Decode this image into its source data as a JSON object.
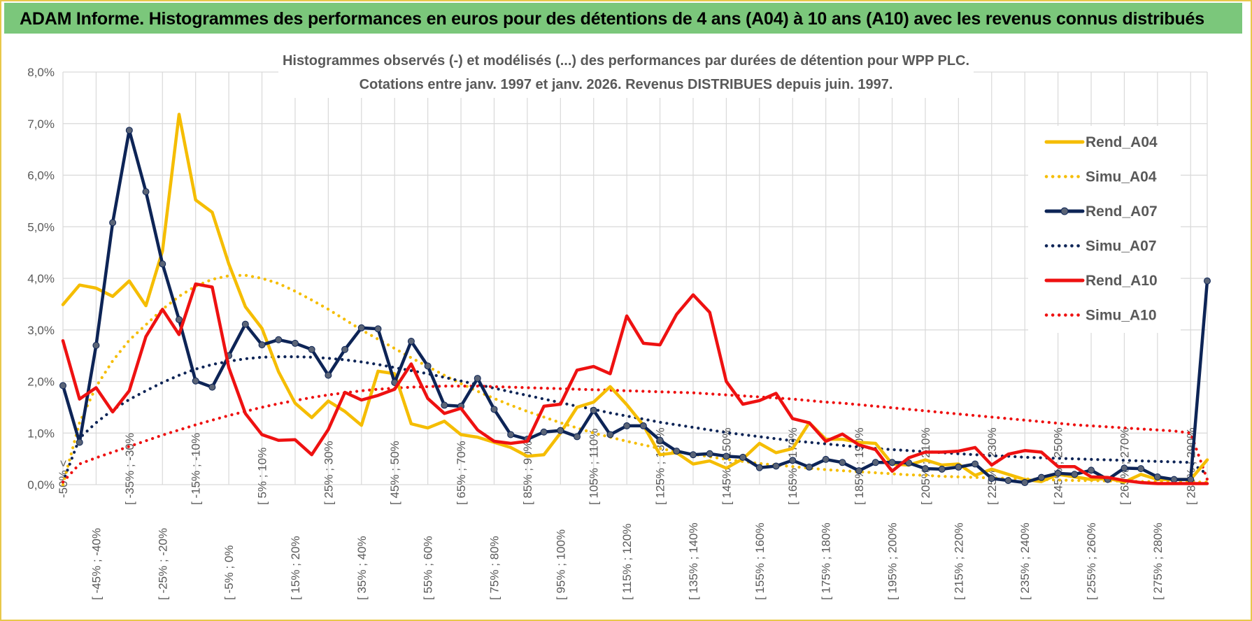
{
  "header": {
    "title": "ADAM Informe. Histogrammes des performances en euros pour des détentions de 4 ans (A04) à 10 ans (A10) avec les revenus connus distribués"
  },
  "colors": {
    "banner": "#7bc77b",
    "frame": "#e8c84a",
    "A04": "#f5bd00",
    "A07": "#0d2456",
    "A10": "#ee1111",
    "grid": "#d9d9d9"
  },
  "chart_data": {
    "type": "line",
    "title": "Histogrammes observés (-) et modélisés (...) des performances par durées de détention pour WPP PLC.",
    "subtitle": "Cotations entre janv. 1997 et janv. 2026. Revenus DISTRIBUES depuis juin. 1997.",
    "ylim": [
      0,
      8
    ],
    "yticks": [
      "0,0%",
      "1,0%",
      "2,0%",
      "3,0%",
      "4,0%",
      "5,0%",
      "6,0%",
      "7,0%",
      "8,0%"
    ],
    "xticklabels": [
      "-50% <",
      "[ -45% ; -40%",
      "[ -35% ; -30%",
      "[ -25% ; -20%",
      "[ -15% ; -10%",
      "[ -5% ; 0%",
      "[ 5% ; 10%",
      "[ 15% ; 20%",
      "[ 25% ; 30%",
      "[ 35% ; 40%",
      "[ 45% ; 50%",
      "[ 55% ; 60%",
      "[ 65% ; 70%",
      "[ 75% ; 80%",
      "[ 85% ; 90%",
      "[ 95% ; 100%",
      "[ 105% ; 110%",
      "[ 115% ; 120%",
      "[ 125% ; 130%",
      "[ 135% ; 140%",
      "[ 145% ; 150%",
      "[ 155% ; 160%",
      "[ 165% ; 170%",
      "[ 175% ; 180%",
      "[ 185% ; 190%",
      "[ 195% ; 200%",
      "[ 205% ; 210%",
      "[ 215% ; 220%",
      "[ 225% ; 230%",
      "[ 235% ; 240%",
      "[ 245% ; 250%",
      "[ 255% ; 260%",
      "[ 265% ; 270%",
      "[ 275% ; 280%",
      "[ 285% ; 290%"
    ],
    "legend_position": "right",
    "series": [
      {
        "name": "Rend_A04",
        "kind": "observed",
        "color": "#f5bd00",
        "markers": false,
        "values": [
          3.49,
          3.87,
          3.81,
          3.65,
          3.95,
          3.47,
          4.53,
          7.18,
          5.52,
          5.28,
          4.28,
          3.45,
          3.03,
          2.19,
          1.58,
          1.3,
          1.62,
          1.42,
          1.15,
          2.2,
          2.15,
          1.18,
          1.1,
          1.23,
          0.97,
          0.92,
          0.82,
          0.72,
          0.55,
          0.58,
          1.0,
          1.5,
          1.6,
          1.9,
          1.55,
          1.15,
          0.58,
          0.62,
          0.4,
          0.46,
          0.32,
          0.5,
          0.8,
          0.62,
          0.7,
          1.2,
          0.88,
          0.88,
          0.82,
          0.8,
          0.4,
          0.38,
          0.48,
          0.38,
          0.4,
          0.18,
          0.3,
          0.2,
          0.1,
          0.06,
          0.2,
          0.15,
          0.1,
          0.12,
          0.05,
          0.2,
          0.1,
          0.1,
          0.1,
          0.48
        ]
      },
      {
        "name": "Simu_A04",
        "kind": "model",
        "color": "#f5bd00",
        "values": [
          0.0,
          1.2,
          1.9,
          2.4,
          2.8,
          3.1,
          3.4,
          3.65,
          3.85,
          3.98,
          4.05,
          4.06,
          4.0,
          3.9,
          3.75,
          3.58,
          3.4,
          3.2,
          3.0,
          2.82,
          2.64,
          2.46,
          2.29,
          2.12,
          1.96,
          1.81,
          1.67,
          1.54,
          1.42,
          1.31,
          1.2,
          1.1,
          1.0,
          0.92,
          0.84,
          0.77,
          0.7,
          0.64,
          0.59,
          0.54,
          0.49,
          0.45,
          0.41,
          0.38,
          0.35,
          0.32,
          0.29,
          0.27,
          0.25,
          0.23,
          0.21,
          0.19,
          0.18,
          0.16,
          0.15,
          0.14,
          0.13,
          0.12,
          0.11,
          0.1,
          0.09,
          0.08,
          0.08,
          0.07,
          0.07,
          0.06,
          0.06,
          0.05,
          0.05,
          0.05
        ]
      },
      {
        "name": "Rend_A07",
        "kind": "observed",
        "color": "#0d2456",
        "markers": true,
        "values": [
          1.92,
          0.82,
          2.7,
          5.08,
          6.87,
          5.68,
          4.28,
          3.2,
          2.01,
          1.89,
          2.5,
          3.11,
          2.71,
          2.81,
          2.74,
          2.62,
          2.12,
          2.62,
          3.04,
          3.02,
          1.98,
          2.78,
          2.3,
          1.54,
          1.52,
          2.06,
          1.46,
          0.97,
          0.88,
          1.02,
          1.05,
          0.93,
          1.44,
          0.97,
          1.14,
          1.14,
          0.86,
          0.65,
          0.58,
          0.6,
          0.55,
          0.53,
          0.33,
          0.36,
          0.47,
          0.34,
          0.49,
          0.43,
          0.27,
          0.43,
          0.43,
          0.42,
          0.31,
          0.3,
          0.34,
          0.4,
          0.12,
          0.08,
          0.04,
          0.14,
          0.22,
          0.2,
          0.28,
          0.1,
          0.32,
          0.31,
          0.15,
          0.1,
          0.1,
          3.95
        ]
      },
      {
        "name": "Simu_A07",
        "kind": "model",
        "color": "#0d2456",
        "values": [
          0.05,
          0.9,
          1.2,
          1.45,
          1.65,
          1.82,
          1.98,
          2.12,
          2.24,
          2.33,
          2.39,
          2.44,
          2.47,
          2.48,
          2.48,
          2.47,
          2.45,
          2.42,
          2.38,
          2.33,
          2.27,
          2.21,
          2.15,
          2.08,
          2.01,
          1.94,
          1.87,
          1.8,
          1.73,
          1.66,
          1.59,
          1.52,
          1.46,
          1.39,
          1.33,
          1.27,
          1.21,
          1.16,
          1.11,
          1.06,
          1.01,
          0.97,
          0.93,
          0.89,
          0.85,
          0.82,
          0.79,
          0.76,
          0.73,
          0.7,
          0.68,
          0.66,
          0.64,
          0.62,
          0.6,
          0.58,
          0.56,
          0.55,
          0.53,
          0.52,
          0.51,
          0.5,
          0.49,
          0.48,
          0.47,
          0.46,
          0.45,
          0.44,
          0.43,
          0.2
        ]
      },
      {
        "name": "Rend_A10",
        "kind": "observed",
        "color": "#ee1111",
        "markers": false,
        "values": [
          2.79,
          1.66,
          1.88,
          1.41,
          1.82,
          2.87,
          3.4,
          2.91,
          3.89,
          3.83,
          2.27,
          1.38,
          0.97,
          0.86,
          0.87,
          0.58,
          1.07,
          1.79,
          1.64,
          1.73,
          1.85,
          2.34,
          1.67,
          1.38,
          1.48,
          1.06,
          0.84,
          0.8,
          0.84,
          1.52,
          1.56,
          2.22,
          2.29,
          2.15,
          3.27,
          2.74,
          2.71,
          3.3,
          3.68,
          3.34,
          2.0,
          1.56,
          1.63,
          1.77,
          1.28,
          1.2,
          0.84,
          0.98,
          0.77,
          0.68,
          0.26,
          0.52,
          0.63,
          0.63,
          0.65,
          0.72,
          0.38,
          0.59,
          0.66,
          0.63,
          0.35,
          0.35,
          0.15,
          0.14,
          0.08,
          0.04,
          0.02,
          0.02,
          0.02,
          0.02
        ]
      },
      {
        "name": "Simu_A10",
        "kind": "model",
        "color": "#ee1111",
        "values": [
          0.05,
          0.4,
          0.52,
          0.63,
          0.74,
          0.85,
          0.96,
          1.06,
          1.16,
          1.25,
          1.34,
          1.42,
          1.5,
          1.57,
          1.63,
          1.69,
          1.74,
          1.78,
          1.82,
          1.85,
          1.87,
          1.89,
          1.9,
          1.91,
          1.91,
          1.91,
          1.9,
          1.89,
          1.88,
          1.87,
          1.86,
          1.85,
          1.84,
          1.83,
          1.82,
          1.81,
          1.8,
          1.79,
          1.78,
          1.76,
          1.74,
          1.72,
          1.7,
          1.68,
          1.66,
          1.63,
          1.6,
          1.58,
          1.55,
          1.52,
          1.49,
          1.46,
          1.43,
          1.4,
          1.37,
          1.34,
          1.31,
          1.28,
          1.25,
          1.22,
          1.19,
          1.16,
          1.14,
          1.12,
          1.1,
          1.08,
          1.06,
          1.04,
          1.0,
          0.1
        ]
      }
    ]
  }
}
